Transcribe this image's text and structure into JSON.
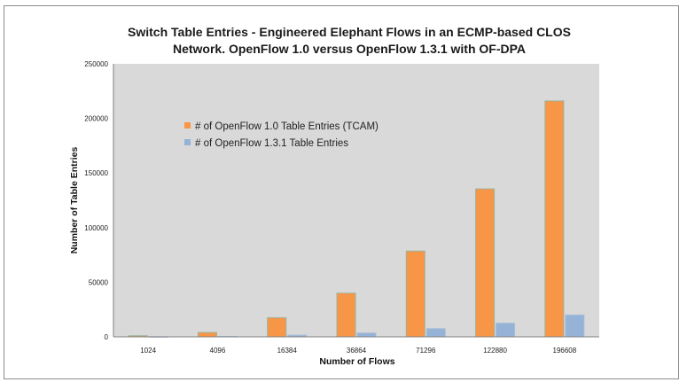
{
  "chart_data": {
    "type": "bar",
    "title_lines": [
      "Switch Table Entries - Engineered Elephant Flows in an ECMP-based CLOS",
      "Network.  OpenFlow 1.0 versus OpenFlow 1.3.1 with OF-DPA"
    ],
    "xlabel": "Number of Flows",
    "ylabel": "Number of Table Entries",
    "categories": [
      "1024",
      "4096",
      "16384",
      "36864",
      "71296",
      "122880",
      "196608"
    ],
    "ylim": [
      0,
      250000
    ],
    "yticks": [
      "0",
      "50000",
      "100000",
      "150000",
      "200000",
      "250000"
    ],
    "ytick_values": [
      0,
      50000,
      100000,
      150000,
      200000,
      250000
    ],
    "grid": false,
    "legend_position": "upper-left",
    "series": [
      {
        "name": "# of OpenFlow 1.0 Table Entries (TCAM)",
        "color": "#F79646",
        "values": [
          1000,
          4000,
          17500,
          40000,
          78500,
          135500,
          216000
        ]
      },
      {
        "name": "# of OpenFlow 1.3.1 Table Entries",
        "color": "#95B3D7",
        "values": [
          150,
          400,
          1500,
          3500,
          7500,
          12500,
          20000
        ]
      }
    ]
  }
}
